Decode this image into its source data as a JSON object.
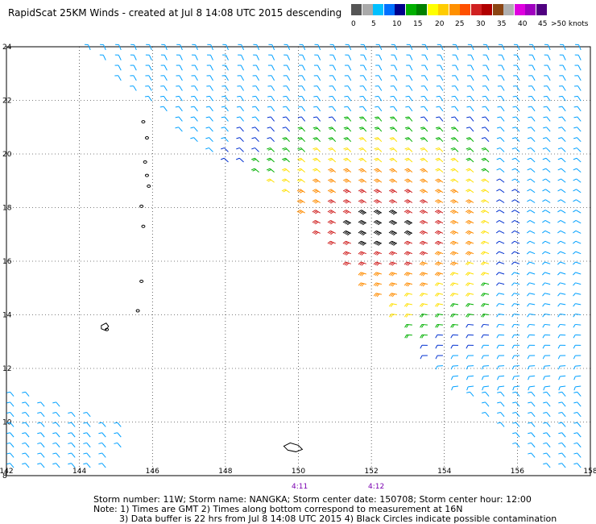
{
  "title": "RapidScat 25KM Winds - created at Jul  8 14:08 UTC 2015 descending",
  "legend": {
    "labels": [
      "0",
      "5",
      "10",
      "15",
      "20",
      "25",
      "30",
      "35",
      "40",
      "45",
      ">50 knots"
    ],
    "colors": [
      "#555555",
      "#aaaaaa",
      "#00c0ff",
      "#0070ff",
      "#00008c",
      "#00b000",
      "#008000",
      "#ffff00",
      "#ffcc00",
      "#ff9000",
      "#ff5000",
      "#d02020",
      "#b00000",
      "#8b4513",
      "#b0b0b0",
      "#e000e0",
      "#a000c0",
      "#500080",
      "#ffffff"
    ]
  },
  "chart_data": {
    "type": "scatter",
    "title": "RapidScat 25KM Winds - created at Jul  8 14:08 UTC 2015 descending",
    "xlabel": "",
    "ylabel": "",
    "x_ticks": [
      142,
      144,
      146,
      148,
      150,
      152,
      154,
      156,
      158
    ],
    "y_ticks": [
      8,
      10,
      12,
      14,
      16,
      18,
      20,
      22,
      24
    ],
    "xlim": [
      142,
      158
    ],
    "ylim": [
      8,
      24
    ],
    "grid": true,
    "swath_center_longitude": 150.5,
    "max_wind_region": "around 151-154E, 14-20N"
  },
  "time_labels": [
    "4:11",
    "4:12"
  ],
  "footer": {
    "line1": "Storm number: 11W;  Storm name: NANGKA;  Storm center date: 150708;  Storm center hour: 12:00",
    "line2": "Note: 1) Times are GMT  2) Times along bottom correspond to measurement at 16N",
    "line3": "3) Data buffer is 22 hrs from Jul  8 14:08 UTC 2015  4) Black Circles indicate possible contamination"
  }
}
